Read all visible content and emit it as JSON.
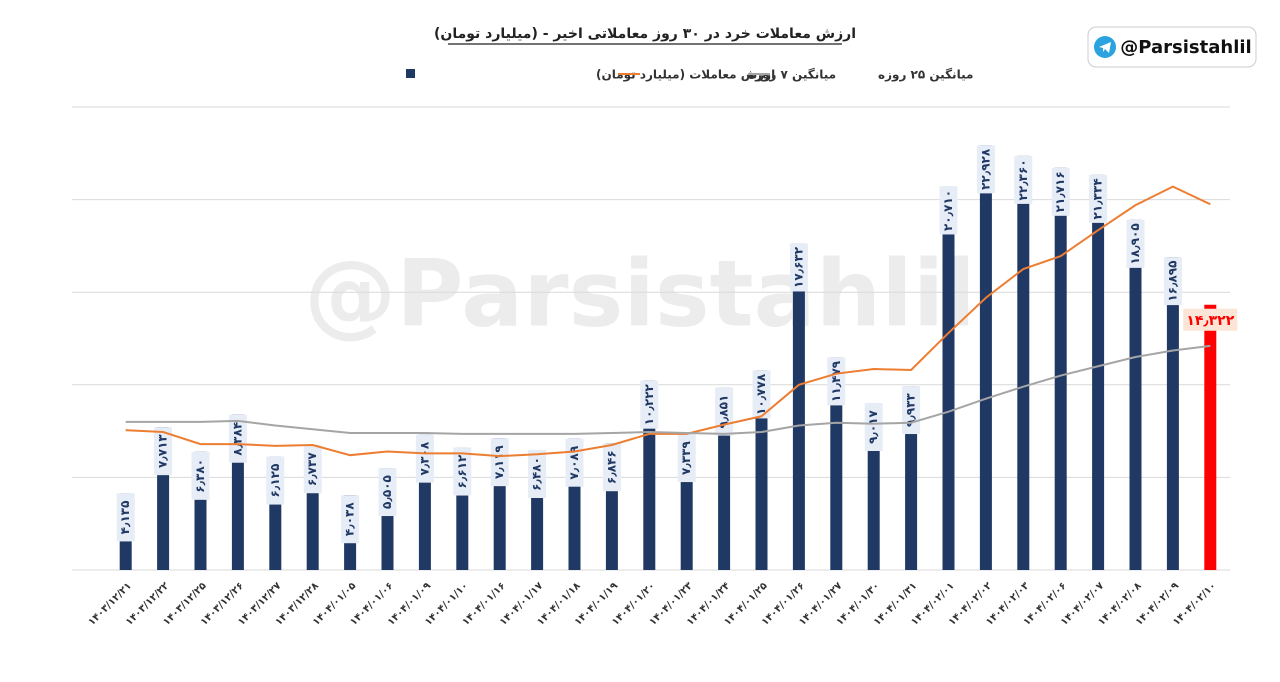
{
  "handle": "@Parsistahlil",
  "watermark": "@Parsistahlil",
  "chart_data": {
    "type": "bar",
    "title": "ارزش معاملات خرد در ۳۰ روز معاملاتی اخیر - (میلیارد تومان)",
    "categories": [
      "۱۴۰۳/۱۲/۲۱",
      "۱۴۰۳/۱۲/۲۲",
      "۱۴۰۳/۱۲/۲۵",
      "۱۴۰۳/۱۲/۲۶",
      "۱۴۰۳/۱۲/۲۷",
      "۱۴۰۳/۱۲/۲۸",
      "۱۴۰۴/۰۱/۰۵",
      "۱۴۰۴/۰۱/۰۶",
      "۱۴۰۴/۰۱/۰۹",
      "۱۴۰۴/۰۱/۱۰",
      "۱۴۰۴/۰۱/۱۶",
      "۱۴۰۴/۰۱/۱۷",
      "۱۴۰۴/۰۱/۱۸",
      "۱۴۰۴/۰۱/۱۹",
      "۱۴۰۴/۰۱/۲۰",
      "۱۴۰۴/۰۱/۲۳",
      "۱۴۰۴/۰۱/۲۴",
      "۱۴۰۴/۰۱/۲۵",
      "۱۴۰۴/۰۱/۲۶",
      "۱۴۰۴/۰۱/۲۷",
      "۱۴۰۴/۰۱/۳۰",
      "۱۴۰۴/۰۱/۳۱",
      "۱۴۰۴/۰۲/۰۱",
      "۱۴۰۴/۰۲/۰۲",
      "۱۴۰۴/۰۲/۰۳",
      "۱۴۰۴/۰۲/۰۶",
      "۱۴۰۴/۰۲/۰۷",
      "۱۴۰۴/۰۲/۰۸",
      "۱۴۰۴/۰۲/۰۹",
      "۱۴۰۴/۰۲/۱۰"
    ],
    "series": [
      {
        "name": "ارزش معاملات (میلیارد تومان)",
        "type": "bar",
        "color": "#203864",
        "bar_colors": [
          "#203864",
          "#203864",
          "#203864",
          "#203864",
          "#203864",
          "#203864",
          "#203864",
          "#203864",
          "#203864",
          "#203864",
          "#203864",
          "#203864",
          "#203864",
          "#203864",
          "#203864",
          "#203864",
          "#203864",
          "#203864",
          "#203864",
          "#203864",
          "#203864",
          "#203864",
          "#203864",
          "#203864",
          "#203864",
          "#203864",
          "#203864",
          "#203864",
          "#203864",
          "#ff0000"
        ],
        "values": [
          4.135,
          7.713,
          6.38,
          8.384,
          6.125,
          6.737,
          4.038,
          5.505,
          7.308,
          6.612,
          7.119,
          6.48,
          7.089,
          6.846,
          10.222,
          7.339,
          9.851,
          10.778,
          17.632,
          11.479,
          9.017,
          9.933,
          20.71,
          22.928,
          22.36,
          21.716,
          21.334,
          18.905,
          16.895,
          14.322
        ],
        "value_labels": [
          "۴٫۱۳۵",
          "۷٫۷۱۳",
          "۶٫۳۸۰",
          "۸٫۳۸۴",
          "۶٫۱۲۵",
          "۶٫۷۳۷",
          "۴٫۰۳۸",
          "۵٫۵۰۵",
          "۷٫۳۰۸",
          "۶٫۶۱۲",
          "۷٫۱۱۹",
          "۶٫۴۸۰",
          "۷٫۰۸۹",
          "۶٫۸۴۶",
          "۱۰٫۲۲۲",
          "۷٫۳۳۹",
          "۹٫۸۵۱",
          "۱۰٫۷۷۸",
          "۱۷٫۶۳۲",
          "۱۱٫۴۷۹",
          "۹٫۰۱۷",
          "۹٫۹۳۳",
          "۲۰٫۷۱۰",
          "۲۲٫۹۲۸",
          "۲۲٫۳۶۰",
          "۲۱٫۷۱۶",
          "۲۱٫۳۳۴",
          "۱۸٫۹۰۵",
          "۱۶٫۸۹۵",
          "۱۴٫۳۲۲"
        ]
      },
      {
        "name": "میانگین ۷ روزه",
        "type": "line",
        "color": "#ed7d31",
        "values": [
          7.55,
          7.45,
          6.8,
          6.8,
          6.7,
          6.75,
          6.2,
          6.4,
          6.3,
          6.3,
          6.15,
          6.25,
          6.4,
          6.75,
          7.35,
          7.35,
          7.85,
          8.3,
          10.0,
          10.6,
          10.85,
          10.8,
          12.8,
          14.7,
          16.25,
          16.95,
          18.35,
          19.7,
          20.7,
          19.75
        ]
      },
      {
        "name": "میانگین ۲۵ روزه",
        "type": "line",
        "color": "#a5a5a5",
        "values": [
          8.0,
          8.0,
          8.0,
          8.05,
          7.8,
          7.6,
          7.4,
          7.4,
          7.4,
          7.35,
          7.35,
          7.35,
          7.35,
          7.4,
          7.45,
          7.4,
          7.35,
          7.45,
          7.8,
          7.95,
          7.9,
          7.95,
          8.55,
          9.25,
          9.9,
          10.5,
          11.0,
          11.5,
          11.85,
          12.1
        ]
      }
    ],
    "ylim": [
      0,
      25
    ],
    "yticks": [
      0,
      5,
      10,
      15,
      20,
      25
    ],
    "grid": true
  }
}
